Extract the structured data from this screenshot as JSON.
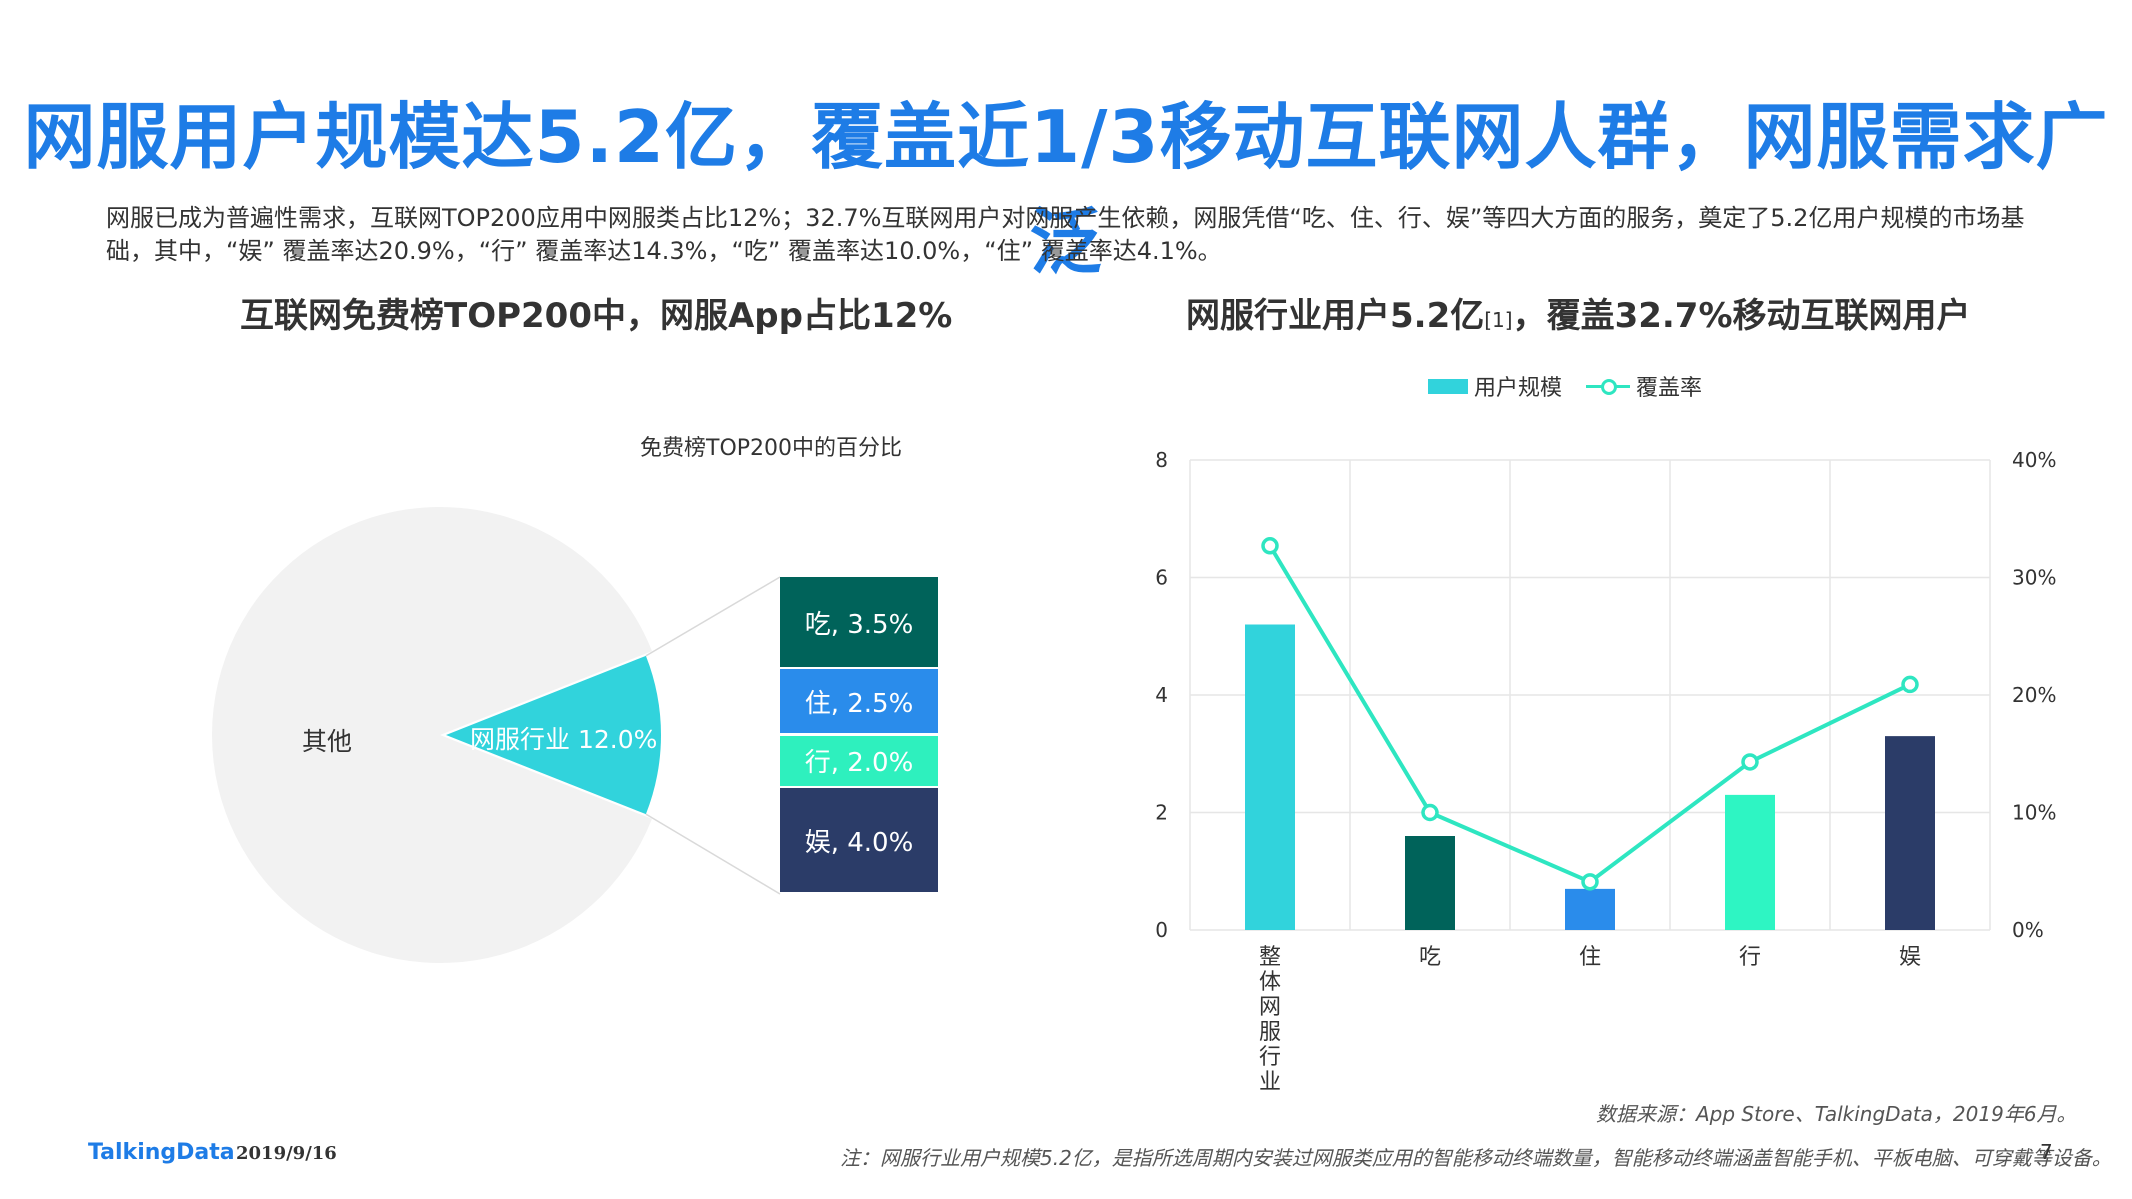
{
  "title": "网服用户规模达5.2亿，覆盖近1/3移动互联网人群，网服需求广泛",
  "intro": "网服已成为普遍性需求，互联网TOP200应用中网服类占比12%；32.7%互联网用户对网服产生依赖，网服凭借“吃、住、行、娱”等四大方面的服务，奠定了5.2亿用户规模的市场基础，其中，“娱” 覆盖率达20.9%，“行” 覆盖率达14.3%，“吃” 覆盖率达10.0%，“住” 覆盖率达4.1%。",
  "left_subtitle": "互联网免费榜TOP200中，网服App占比12%",
  "right_subtitle": {
    "part1": "网服行业用户5.2亿",
    "sup": "[1]",
    "part2": "，覆盖32.7%移动互联网用户"
  },
  "chart_data": [
    {
      "type": "pie",
      "title": "免费榜TOP200中的百分比",
      "slices": [
        {
          "label": "其他",
          "value": 88.0,
          "color": "#F2F2F2"
        },
        {
          "label": "网服行业",
          "value": 12.0,
          "color": "#31D3DC",
          "data_label": "网服行业 12.0%"
        }
      ],
      "breakdown": [
        {
          "label": "吃",
          "value": 3.5,
          "data_label": "吃, 3.5%",
          "color": "#00635A"
        },
        {
          "label": "住",
          "value": 2.5,
          "data_label": "住, 2.5%",
          "color": "#2A8CEB"
        },
        {
          "label": "行",
          "value": 2.0,
          "data_label": "行, 2.0%",
          "color": "#2EF0BE"
        },
        {
          "label": "娱",
          "value": 4.0,
          "data_label": "娱, 4.0%",
          "color": "#2B3C68"
        }
      ]
    },
    {
      "type": "bar",
      "categories": [
        "整体网服行业",
        "吃",
        "住",
        "行",
        "娱"
      ],
      "series": [
        {
          "name": "用户规模",
          "type": "bar",
          "axis": "left",
          "values": [
            5.2,
            1.6,
            0.7,
            2.3,
            3.3
          ],
          "colors": [
            "#31D3DC",
            "#00635A",
            "#2A8CEB",
            "#2EF5C3",
            "#2B3C68"
          ]
        },
        {
          "name": "覆盖率",
          "type": "line",
          "axis": "right",
          "values": [
            32.7,
            10.0,
            4.1,
            14.3,
            20.9
          ],
          "color": "#2EE6C1"
        }
      ],
      "ylim": [
        0,
        8
      ],
      "y_ticks": [
        "0",
        "2",
        "4",
        "6",
        "8"
      ],
      "y2lim": [
        0,
        40
      ],
      "y2_ticks": [
        "0%",
        "10%",
        "20%",
        "30%",
        "40%"
      ],
      "legend_position": "top",
      "grid": true
    }
  ],
  "legend": {
    "bar": "用户规模",
    "line": "覆盖率"
  },
  "source": "数据来源：App Store、TalkingData，2019年6月。",
  "note": "注：网服行业用户规模5.2亿，是指所选周期内安装过网服类应用的智能移动终端数量，智能移动终端涵盖智能手机、平板电脑、可穿戴等设备。",
  "page_number": "7",
  "brand": "TalkingData",
  "date": "2019/9/16"
}
